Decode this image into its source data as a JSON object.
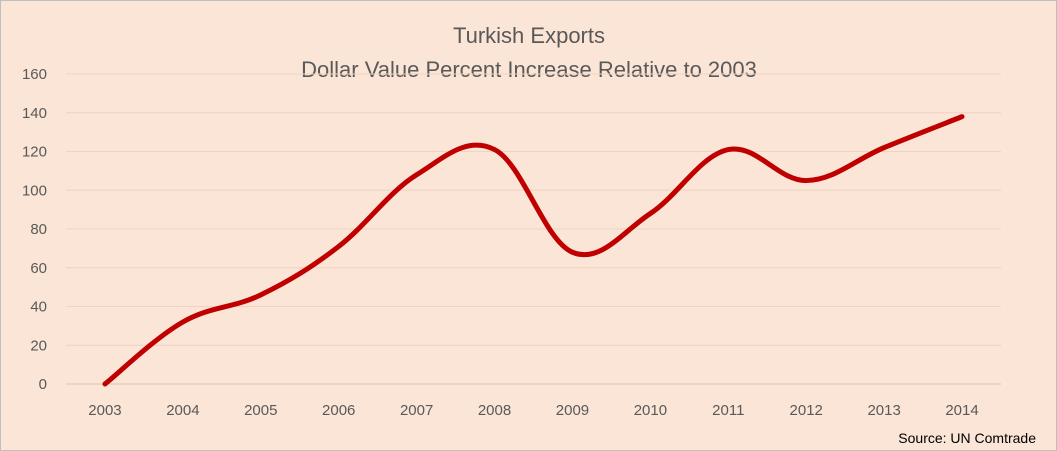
{
  "chart_data": {
    "type": "line",
    "title": "Turkish Exports",
    "subtitle": "Dollar Value Percent Increase Relative to 2003",
    "xlabel": "",
    "ylabel": "",
    "categories": [
      "2003",
      "2004",
      "2005",
      "2006",
      "2007",
      "2008",
      "2009",
      "2010",
      "2011",
      "2012",
      "2013",
      "2014"
    ],
    "series": [
      {
        "values": [
          0,
          32,
          46,
          71,
          108,
          121,
          68,
          88,
          121,
          105,
          122,
          138
        ],
        "color": "#c00000"
      }
    ],
    "ylim": [
      0,
      160
    ],
    "yticks": [
      0,
      20,
      40,
      60,
      80,
      100,
      120,
      140,
      160
    ],
    "grid": true,
    "legend": "none",
    "smooth": true,
    "source": "Source:  UN  Comtrade"
  },
  "colors": {
    "background": "#fbe5d6",
    "gridline": "#f2d2c0",
    "series": "#c00000",
    "text": "#595959"
  }
}
